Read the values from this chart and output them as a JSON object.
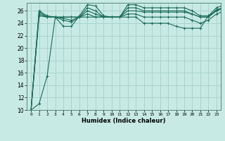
{
  "bg_color": "#c8eae4",
  "grid_color": "#a8d4cc",
  "line_color": "#1a6b5a",
  "xlabel": "Humidex (Indice chaleur)",
  "ylim": [
    10,
    27
  ],
  "xlim": [
    -0.5,
    23.5
  ],
  "yticks": [
    10,
    12,
    14,
    16,
    18,
    20,
    22,
    24,
    26
  ],
  "xticks": [
    0,
    1,
    2,
    3,
    4,
    5,
    6,
    7,
    8,
    9,
    10,
    11,
    12,
    13,
    14,
    15,
    16,
    17,
    18,
    19,
    20,
    21,
    22,
    23
  ],
  "series": [
    [
      10.0,
      26.0,
      25.2,
      25.0,
      23.5,
      23.5,
      25.2,
      27.0,
      26.8,
      25.2,
      25.0,
      25.0,
      27.0,
      27.0,
      26.5,
      26.5,
      26.5,
      26.5,
      26.5,
      26.5,
      26.0,
      25.2,
      25.2,
      26.5,
      27.0
    ],
    [
      10.0,
      25.8,
      25.0,
      25.0,
      24.5,
      24.2,
      25.0,
      26.5,
      26.0,
      25.0,
      25.0,
      25.0,
      26.5,
      26.5,
      26.0,
      26.0,
      26.0,
      26.0,
      26.0,
      26.0,
      25.5,
      25.0,
      25.0,
      26.2,
      26.5
    ],
    [
      10.0,
      25.5,
      25.0,
      25.0,
      24.8,
      24.5,
      25.0,
      26.0,
      25.5,
      25.0,
      25.0,
      25.0,
      26.0,
      26.0,
      25.8,
      25.8,
      25.8,
      25.8,
      25.8,
      25.8,
      25.5,
      25.0,
      25.0,
      26.0,
      26.5
    ],
    [
      10.0,
      25.2,
      25.0,
      25.0,
      25.0,
      25.0,
      25.0,
      25.5,
      25.0,
      25.0,
      25.0,
      25.0,
      25.5,
      25.5,
      25.0,
      25.0,
      25.0,
      25.0,
      25.0,
      25.0,
      24.5,
      24.0,
      24.5,
      25.5,
      26.0
    ],
    [
      10.0,
      11.0,
      15.5,
      25.0,
      25.0,
      25.0,
      25.0,
      25.0,
      25.0,
      25.0,
      25.0,
      25.0,
      25.0,
      25.0,
      24.0,
      24.0,
      24.0,
      24.0,
      23.5,
      23.2,
      23.2,
      23.2,
      25.2,
      26.0,
      26.8
    ]
  ]
}
